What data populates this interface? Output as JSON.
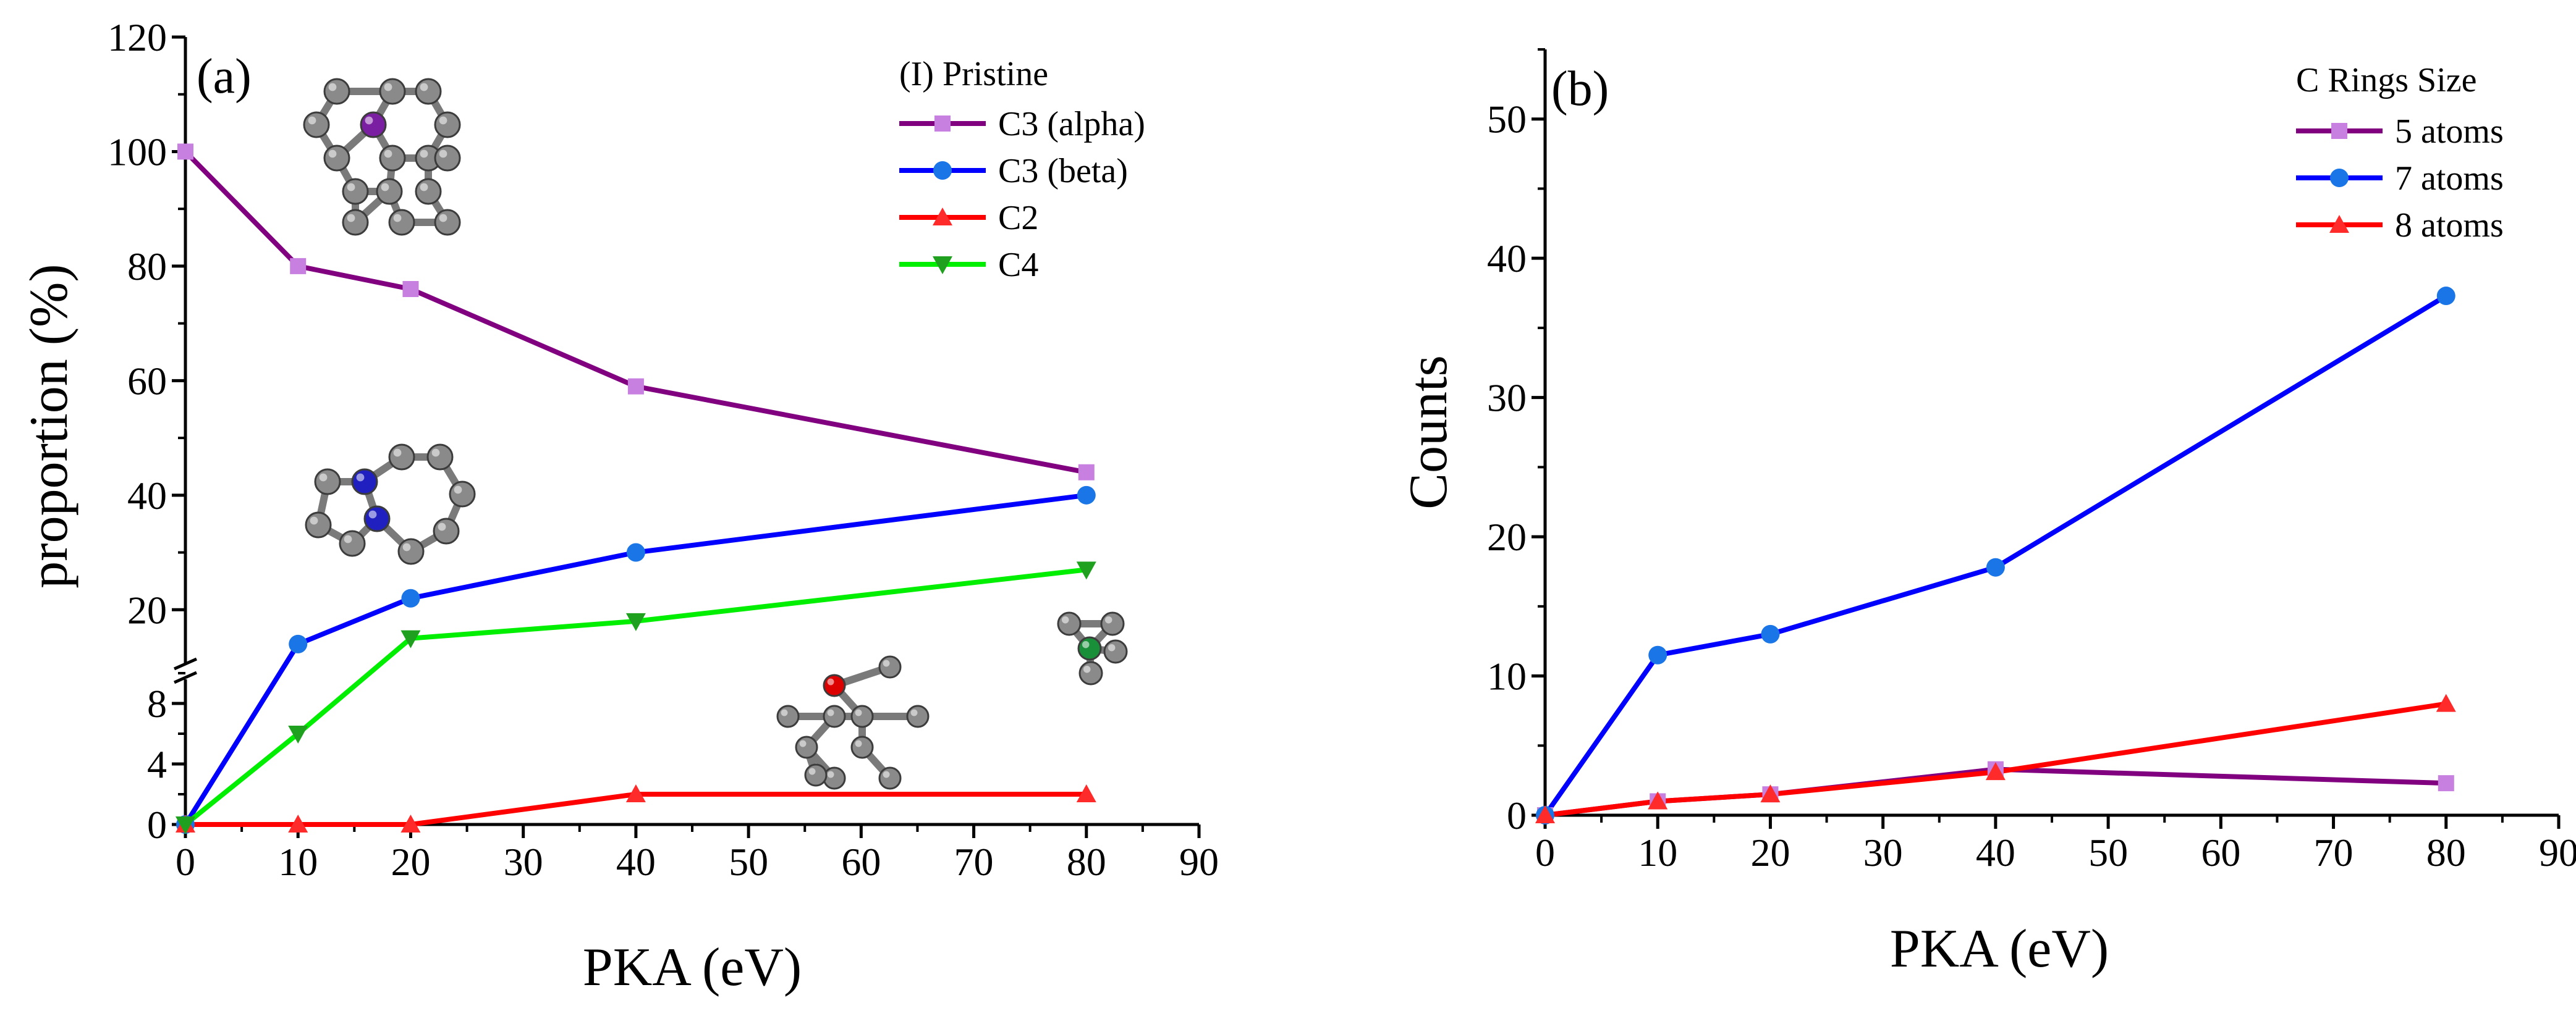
{
  "figure": {
    "panels": [
      "(a)",
      "(b)"
    ]
  },
  "chart_data": [
    {
      "type": "line",
      "panel_label": "(a)",
      "xlabel": "PKA (eV)",
      "ylabel": "proportion (%)",
      "xlim": [
        0,
        90
      ],
      "x_ticks": [
        "0",
        "10",
        "20",
        "30",
        "40",
        "50",
        "60",
        "70",
        "80",
        "90"
      ],
      "y_axis_break": true,
      "ylim_lower": [
        0,
        10
      ],
      "ylim_upper": [
        10,
        120
      ],
      "y_ticks_lower": [
        "0",
        "4",
        "8"
      ],
      "y_ticks_upper": [
        "20",
        "40",
        "60",
        "80",
        "100",
        "120"
      ],
      "legend_title": "(I) Pristine",
      "legend_position": "top-right",
      "x": [
        0,
        10,
        20,
        40,
        80
      ],
      "series": [
        {
          "name": "C3 (alpha)",
          "color": "#800080",
          "marker_color": "#c77fe0",
          "marker": "square",
          "values": [
            100,
            80,
            76,
            59,
            44
          ]
        },
        {
          "name": "C3 (beta)",
          "color": "#0000ff",
          "marker_color": "#1a75e6",
          "marker": "circle",
          "values": [
            0,
            14,
            22,
            30,
            40
          ]
        },
        {
          "name": "C2",
          "color": "#ff0000",
          "marker_color": "#ff2a2a",
          "marker": "triangle-up",
          "values": [
            0,
            0,
            0,
            2,
            2
          ]
        },
        {
          "name": "C4",
          "color": "#00ee00",
          "marker_color": "#1fa01f",
          "marker": "triangle-down",
          "values": [
            0,
            6,
            15,
            18,
            27
          ]
        }
      ],
      "insets": [
        {
          "icon": "molecule-ring-purple-center",
          "accent": "#7b1fa2"
        },
        {
          "icon": "molecule-ring-blue-pair",
          "accent": "#2020c0"
        },
        {
          "icon": "molecule-chain-red-atom",
          "accent": "#dd0000"
        },
        {
          "icon": "molecule-cluster-green-atom",
          "accent": "#1a8f3a"
        }
      ]
    },
    {
      "type": "line",
      "panel_label": "(b)",
      "xlabel": "PKA (eV)",
      "ylabel": "Counts",
      "xlim": [
        0,
        90
      ],
      "ylim": [
        0,
        55
      ],
      "x_ticks": [
        "0",
        "10",
        "20",
        "30",
        "40",
        "50",
        "60",
        "70",
        "80",
        "90"
      ],
      "y_ticks": [
        "0",
        "10",
        "20",
        "30",
        "40",
        "50"
      ],
      "legend_title": "C Rings Size",
      "legend_position": "top-right",
      "x": [
        0,
        10,
        20,
        40,
        80
      ],
      "series": [
        {
          "name": "5 atoms",
          "color": "#800080",
          "marker_color": "#c77fe0",
          "marker": "square",
          "values": [
            0,
            1,
            1.5,
            3.3,
            2.3
          ]
        },
        {
          "name": "7 atoms",
          "color": "#0000ff",
          "marker_color": "#1a75e6",
          "marker": "circle",
          "values": [
            0,
            11.5,
            13,
            17.8,
            37.3
          ]
        },
        {
          "name": "8 atoms",
          "color": "#ff0000",
          "marker_color": "#ff2a2a",
          "marker": "triangle-up",
          "values": [
            0,
            1,
            1.5,
            3.1,
            8
          ]
        }
      ]
    }
  ]
}
